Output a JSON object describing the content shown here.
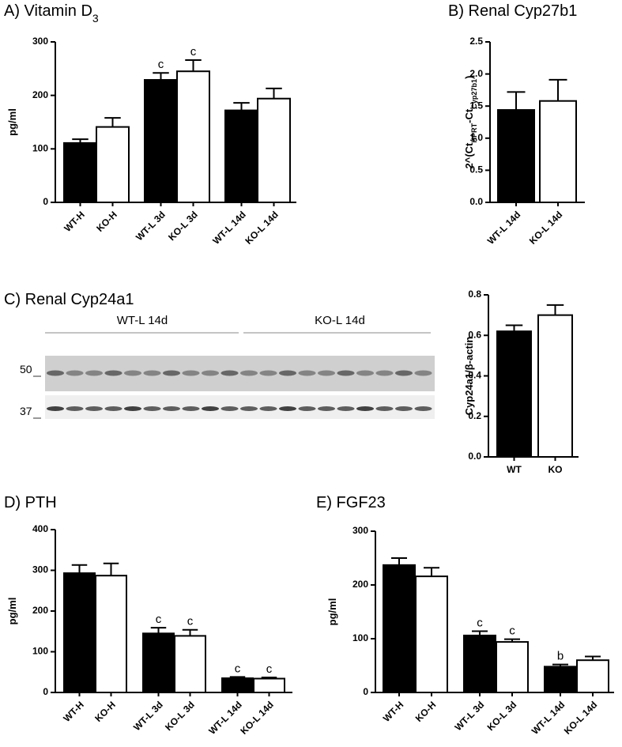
{
  "chart_data": [
    {
      "type": "bar",
      "title": [
        "A) Vitamin D",
        "3"
      ],
      "ylabel": "pg/ml",
      "categories": [
        "WT-H",
        "KO-H",
        "WT-L 3d",
        "KO-L 3d",
        "WT-L 14d",
        "KO-L 14d"
      ],
      "values": [
        111,
        141,
        229,
        245,
        172,
        194
      ],
      "errors": [
        7,
        17,
        13,
        21,
        14,
        19
      ],
      "annotations": [
        null,
        null,
        "c",
        "c",
        null,
        null
      ],
      "colors": [
        "#000000",
        "#ffffff",
        "#000000",
        "#ffffff",
        "#000000",
        "#ffffff"
      ],
      "ylim": [
        0,
        300
      ],
      "yticks": [
        0,
        100,
        200,
        300
      ]
    },
    {
      "type": "bar",
      "title": [
        "B) Renal Cyp27b1"
      ],
      "ylabel": [
        "2^(Ct",
        "HPRT",
        "-Ct",
        "Cyp27b1",
        ")"
      ],
      "categories": [
        "WT-L 14d",
        "KO-L 14d"
      ],
      "values": [
        1.44,
        1.58
      ],
      "errors": [
        0.28,
        0.33
      ],
      "colors": [
        "#000000",
        "#ffffff"
      ],
      "ylim": [
        0,
        2.5
      ],
      "yticks": [
        {
          "value": 0,
          "label": "0.0"
        },
        0.5,
        {
          "value": 1,
          "label": "1.0"
        },
        1.5,
        {
          "value": 2,
          "label": "2.0"
        },
        2.5
      ]
    },
    {
      "type": "bar",
      "ylabel": "Cyp24a1/β-actin",
      "categories": [
        "WT",
        "KO"
      ],
      "values": [
        0.62,
        0.7
      ],
      "errors": [
        0.03,
        0.05
      ],
      "colors": [
        "#000000",
        "#ffffff"
      ],
      "ylim": [
        0,
        0.8
      ],
      "yticks": [
        {
          "value": 0,
          "label": "0.0"
        },
        0.2,
        0.4,
        0.6,
        0.8
      ]
    },
    {
      "type": "bar",
      "title": [
        "D) PTH"
      ],
      "ylabel": "pg/ml",
      "categories": [
        "WT-H",
        "KO-H",
        "WT-L 3d",
        "KO-L 3d",
        "WT-L 14d",
        "KO-L 14d"
      ],
      "values": [
        293,
        287,
        145,
        139,
        35,
        34
      ],
      "errors": [
        20,
        30,
        14,
        15,
        3,
        3
      ],
      "annotations": [
        null,
        null,
        "c",
        "c",
        "c",
        "c"
      ],
      "colors": [
        "#000000",
        "#ffffff",
        "#000000",
        "#ffffff",
        "#000000",
        "#ffffff"
      ],
      "ylim": [
        0,
        400
      ],
      "yticks": [
        0,
        100,
        200,
        300,
        400
      ]
    },
    {
      "type": "bar",
      "title": [
        "E) FGF23"
      ],
      "ylabel": "pg/ml",
      "categories": [
        "WT-H",
        "KO-H",
        "WT-L 3d",
        "KO-L 3d",
        "WT-L 14d",
        "KO-L 14d"
      ],
      "values": [
        237,
        216,
        106,
        94,
        48,
        60
      ],
      "errors": [
        13,
        16,
        8,
        5,
        4,
        7
      ],
      "annotations": [
        null,
        null,
        "c",
        "c",
        "b",
        null
      ],
      "colors": [
        "#000000",
        "#ffffff",
        "#000000",
        "#ffffff",
        "#000000",
        "#ffffff"
      ],
      "ylim": [
        0,
        300
      ],
      "yticks": [
        0,
        100,
        200,
        300
      ]
    }
  ],
  "blot": {
    "title": "C) Renal Cyp24a1",
    "groups": [
      "WT-L 14d",
      "KO-L 14d"
    ],
    "markers": [
      "50",
      "37"
    ]
  }
}
